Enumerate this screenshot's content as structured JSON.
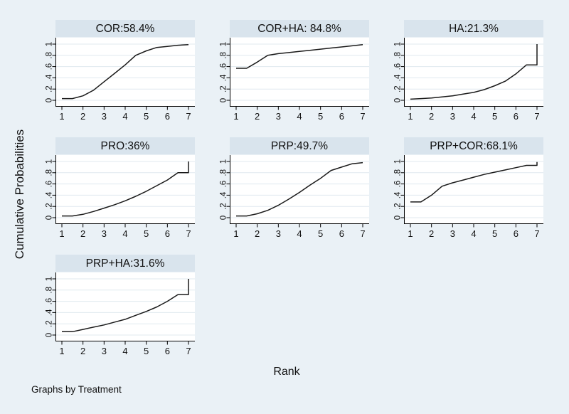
{
  "figure": {
    "y_axis_title": "Cumulative Probabilities",
    "x_axis_title": "Rank",
    "note": "Graphs by Treatment",
    "background_color": "#eaf1f6",
    "band_color": "#d9e4ed",
    "plot_background": "#ffffff",
    "grid_color": "#e0e9ef",
    "axis_color": "#000000",
    "line_color": "#1a1a1a"
  },
  "chart_data": {
    "type": "line",
    "title": "",
    "xlabel": "Rank",
    "ylabel": "Cumulative Probabilities",
    "note": "Graphs by Treatment",
    "xlim": [
      1,
      7
    ],
    "ylim": [
      0,
      1
    ],
    "x_ticks": [
      1,
      2,
      3,
      4,
      5,
      6,
      7
    ],
    "y_ticks": [
      0,
      0.2,
      0.4,
      0.6,
      0.8,
      1
    ],
    "y_tick_labels": [
      "0",
      ".2",
      ".4",
      ".6",
      ".8",
      "1"
    ],
    "grid": "horizontal",
    "legend": "none",
    "panels": [
      {
        "title": "COR:58.4%",
        "points": [
          [
            1,
            0.03
          ],
          [
            1.5,
            0.03
          ],
          [
            2,
            0.08
          ],
          [
            2.5,
            0.18
          ],
          [
            3,
            0.33
          ],
          [
            3.5,
            0.48
          ],
          [
            4,
            0.63
          ],
          [
            4.5,
            0.8
          ],
          [
            5,
            0.88
          ],
          [
            5.5,
            0.94
          ],
          [
            6,
            0.96
          ],
          [
            6.5,
            0.98
          ],
          [
            7,
            0.99
          ]
        ]
      },
      {
        "title": "COR+HA: 84.8%",
        "points": [
          [
            1,
            0.57
          ],
          [
            1.5,
            0.57
          ],
          [
            2,
            0.68
          ],
          [
            2.5,
            0.8
          ],
          [
            3,
            0.83
          ],
          [
            3.5,
            0.85
          ],
          [
            4,
            0.87
          ],
          [
            4.5,
            0.89
          ],
          [
            5,
            0.91
          ],
          [
            5.5,
            0.93
          ],
          [
            6,
            0.95
          ],
          [
            6.5,
            0.97
          ],
          [
            7,
            0.99
          ]
        ]
      },
      {
        "title": "HA:21.3%",
        "points": [
          [
            1,
            0.02
          ],
          [
            1.5,
            0.03
          ],
          [
            2,
            0.04
          ],
          [
            2.5,
            0.06
          ],
          [
            3,
            0.08
          ],
          [
            3.5,
            0.11
          ],
          [
            4,
            0.14
          ],
          [
            4.5,
            0.19
          ],
          [
            5,
            0.26
          ],
          [
            5.5,
            0.34
          ],
          [
            6,
            0.47
          ],
          [
            6.5,
            0.63
          ],
          [
            7,
            0.63
          ],
          [
            7,
            1.0
          ]
        ]
      },
      {
        "title": "PRO:36%",
        "points": [
          [
            1,
            0.03
          ],
          [
            1.5,
            0.03
          ],
          [
            2,
            0.06
          ],
          [
            2.5,
            0.11
          ],
          [
            3,
            0.17
          ],
          [
            3.5,
            0.23
          ],
          [
            4,
            0.3
          ],
          [
            4.5,
            0.38
          ],
          [
            5,
            0.47
          ],
          [
            5.5,
            0.57
          ],
          [
            6,
            0.67
          ],
          [
            6.5,
            0.8
          ],
          [
            7,
            0.8
          ],
          [
            7,
            1.0
          ]
        ]
      },
      {
        "title": "PRP:49.7%",
        "points": [
          [
            1,
            0.03
          ],
          [
            1.5,
            0.03
          ],
          [
            2,
            0.07
          ],
          [
            2.5,
            0.13
          ],
          [
            3,
            0.22
          ],
          [
            3.5,
            0.33
          ],
          [
            4,
            0.45
          ],
          [
            4.5,
            0.58
          ],
          [
            5,
            0.7
          ],
          [
            5.5,
            0.84
          ],
          [
            6,
            0.9
          ],
          [
            6.5,
            0.96
          ],
          [
            7,
            0.98
          ]
        ]
      },
      {
        "title": "PRP+COR:68.1%",
        "points": [
          [
            1,
            0.28
          ],
          [
            1.5,
            0.28
          ],
          [
            2,
            0.4
          ],
          [
            2.5,
            0.56
          ],
          [
            3,
            0.62
          ],
          [
            3.5,
            0.67
          ],
          [
            4,
            0.72
          ],
          [
            4.5,
            0.77
          ],
          [
            5,
            0.81
          ],
          [
            5.5,
            0.85
          ],
          [
            6,
            0.89
          ],
          [
            6.5,
            0.93
          ],
          [
            7,
            0.93
          ],
          [
            7,
            0.99
          ]
        ]
      },
      {
        "title": "PRP+HA:31.6%",
        "points": [
          [
            1,
            0.06
          ],
          [
            1.5,
            0.06
          ],
          [
            2,
            0.1
          ],
          [
            2.5,
            0.14
          ],
          [
            3,
            0.18
          ],
          [
            3.5,
            0.23
          ],
          [
            4,
            0.28
          ],
          [
            4.5,
            0.35
          ],
          [
            5,
            0.42
          ],
          [
            5.5,
            0.5
          ],
          [
            6,
            0.6
          ],
          [
            6.5,
            0.72
          ],
          [
            7,
            0.72
          ],
          [
            7,
            1.0
          ]
        ]
      }
    ]
  }
}
